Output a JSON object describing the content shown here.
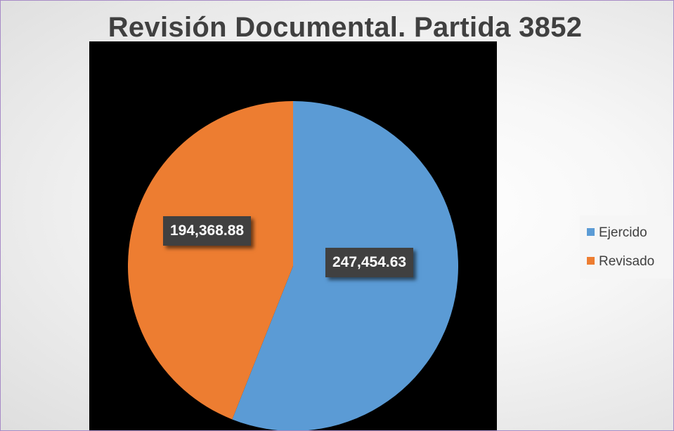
{
  "chart_data": {
    "type": "pie",
    "title": "Revisión Documental. Partida 3852",
    "slices": [
      {
        "label": "Ejercido",
        "value": 247454.63,
        "display": "247,454.63",
        "color": "#5b9bd5"
      },
      {
        "label": "Revisado",
        "value": 194368.88,
        "display": "194,368.88",
        "color": "#ed7d31"
      }
    ],
    "start_angle_deg": 0,
    "direction": "clockwise",
    "legend_position": "right"
  },
  "colors": {
    "plot_background": "#000000",
    "title": "#404040",
    "label_background": "#404040"
  }
}
